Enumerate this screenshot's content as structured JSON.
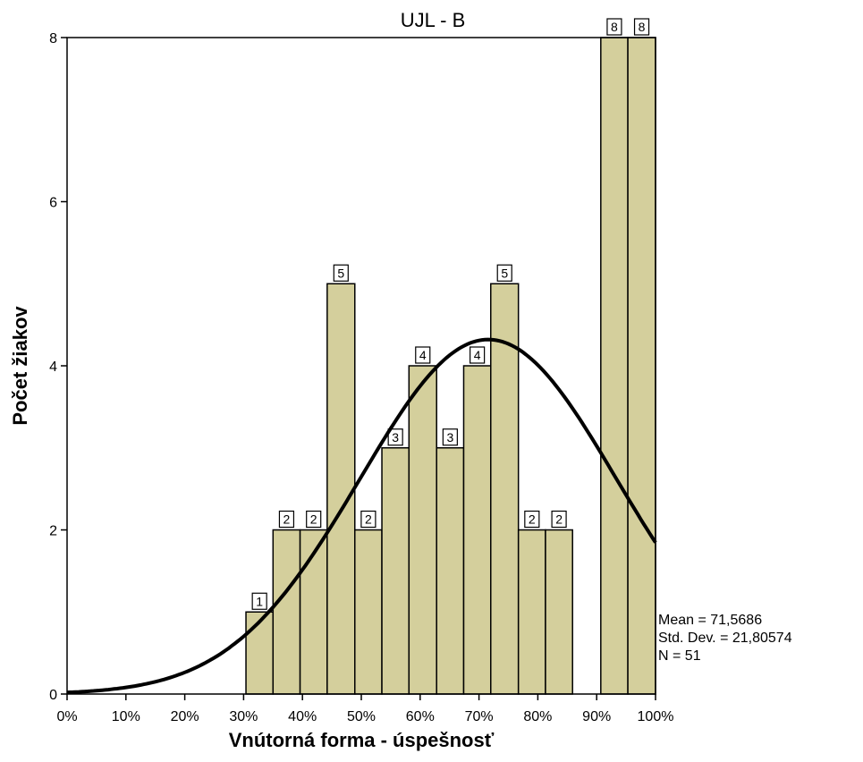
{
  "chart_data": {
    "type": "bar",
    "title": "UJL - B",
    "xlabel": "Vnútorná forma - úspešnosť",
    "ylabel": "Počet žiakov",
    "x_tick_labels": [
      "0%",
      "10%",
      "20%",
      "30%",
      "40%",
      "50%",
      "60%",
      "70%",
      "80%",
      "90%",
      "100%"
    ],
    "y_tick_labels": [
      "0",
      "2",
      "4",
      "6",
      "8"
    ],
    "xlim": [
      0,
      100
    ],
    "ylim": [
      0,
      8
    ],
    "grid": false,
    "bar_color": "#d4cf9c",
    "bins": [
      {
        "start": 30.4,
        "end": 35.0,
        "value": 1,
        "label": "1"
      },
      {
        "start": 35.0,
        "end": 39.6,
        "value": 2,
        "label": "2"
      },
      {
        "start": 39.6,
        "end": 44.2,
        "value": 2,
        "label": "2"
      },
      {
        "start": 44.2,
        "end": 48.9,
        "value": 5,
        "label": "5"
      },
      {
        "start": 48.9,
        "end": 53.5,
        "value": 2,
        "label": "2"
      },
      {
        "start": 53.5,
        "end": 58.1,
        "value": 3,
        "label": "3"
      },
      {
        "start": 58.1,
        "end": 62.8,
        "value": 4,
        "label": "4"
      },
      {
        "start": 62.8,
        "end": 67.4,
        "value": 3,
        "label": "3"
      },
      {
        "start": 67.4,
        "end": 72.0,
        "value": 4,
        "label": "4"
      },
      {
        "start": 72.0,
        "end": 76.7,
        "value": 5,
        "label": "5"
      },
      {
        "start": 76.7,
        "end": 81.3,
        "value": 2,
        "label": "2"
      },
      {
        "start": 81.3,
        "end": 85.9,
        "value": 2,
        "label": "2"
      },
      {
        "start": 90.7,
        "end": 95.3,
        "value": 8,
        "label": "8"
      },
      {
        "start": 95.3,
        "end": 100.0,
        "value": 8,
        "label": "8"
      }
    ],
    "normal_curve": {
      "mean": 71.5686,
      "sd": 21.80574,
      "n": 51,
      "bin_width": 4.63
    },
    "stats": {
      "mean": "Mean = 71,5686",
      "std_dev": "Std. Dev. = 21,80574",
      "n": "N = 51"
    }
  }
}
